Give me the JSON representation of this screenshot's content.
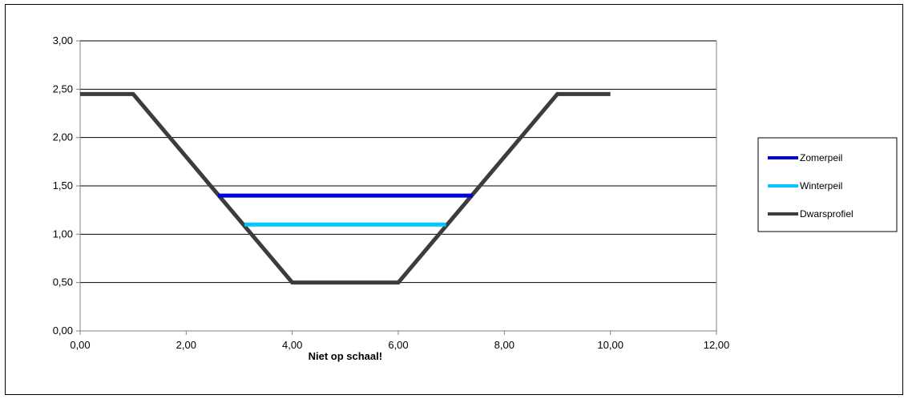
{
  "chart_data": {
    "type": "line",
    "title": "",
    "xlabel": "Niet op schaal!",
    "ylabel": "",
    "xlim": [
      0,
      12
    ],
    "ylim": [
      0,
      3
    ],
    "x_ticks": [
      0,
      2,
      4,
      6,
      8,
      10,
      12
    ],
    "y_ticks": [
      0,
      0.5,
      1,
      1.5,
      2,
      2.5,
      3
    ],
    "x_tick_labels": [
      "0,00",
      "2,00",
      "4,00",
      "6,00",
      "8,00",
      "10,00",
      "12,00"
    ],
    "y_tick_labels": [
      "0,00",
      "0,50",
      "1,00",
      "1,50",
      "2,00",
      "2,50",
      "3,00"
    ],
    "grid": "horizontal major",
    "legend_position": "right",
    "series": [
      {
        "name": "Zomerpeil",
        "color": "#0000e0",
        "x": [
          2.6,
          7.4
        ],
        "y": [
          1.4,
          1.4
        ]
      },
      {
        "name": "Winterpeil",
        "color": "#00c8ff",
        "x": [
          3.1,
          6.9
        ],
        "y": [
          1.1,
          1.1
        ]
      },
      {
        "name": "Dwarsprofiel",
        "color": "#3c3c3c",
        "x": [
          0,
          1,
          4,
          6,
          9,
          10
        ],
        "y": [
          2.45,
          2.45,
          0.5,
          0.5,
          2.45,
          2.45
        ]
      }
    ]
  }
}
